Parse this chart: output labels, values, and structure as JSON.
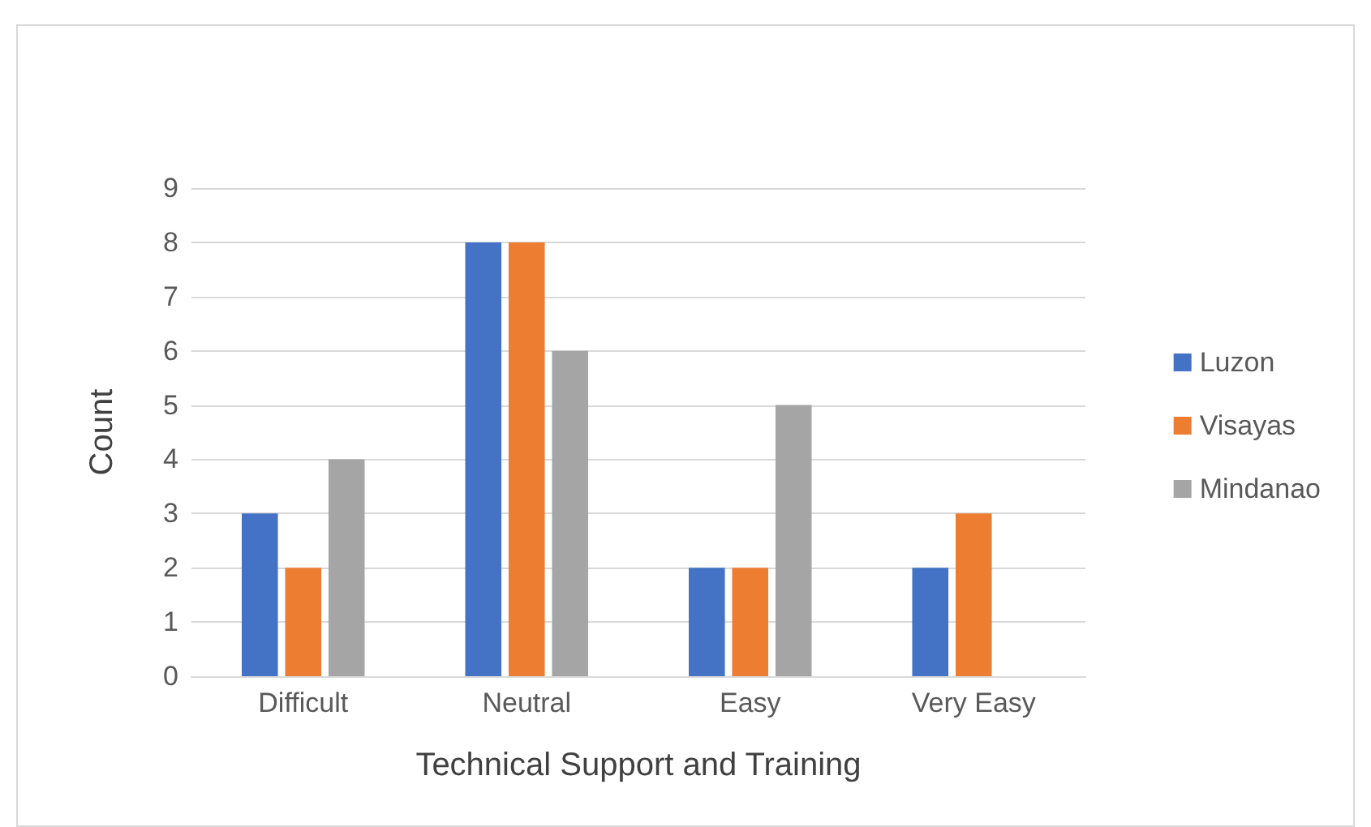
{
  "chart_data": {
    "type": "bar",
    "xlabel": "Technical Support and Training",
    "ylabel": "Count",
    "categories": [
      "Difficult",
      "Neutral",
      "Easy",
      "Very Easy"
    ],
    "series": [
      {
        "name": "Luzon",
        "color": "#4472c4",
        "values": [
          3,
          8,
          2,
          2
        ]
      },
      {
        "name": "Visayas",
        "color": "#ed7d31",
        "values": [
          2,
          8,
          2,
          3
        ]
      },
      {
        "name": "Mindanao",
        "color": "#a5a5a5",
        "values": [
          4,
          6,
          5,
          0
        ]
      }
    ],
    "ylim": [
      0,
      9
    ],
    "yticks": [
      0,
      1,
      2,
      3,
      4,
      5,
      6,
      7,
      8,
      9
    ],
    "grid": "y",
    "legend": "right"
  }
}
